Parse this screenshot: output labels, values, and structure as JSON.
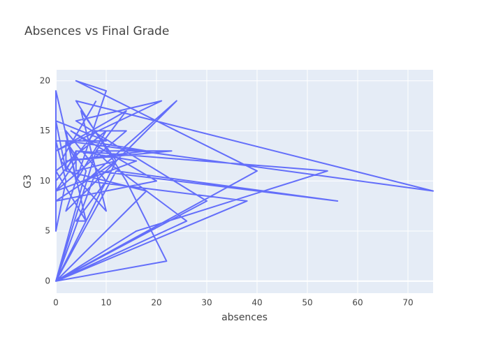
{
  "chart_data": {
    "type": "line",
    "title": "Absences vs Final Grade",
    "x_label": "absences",
    "y_label": "G3",
    "x": [
      6,
      4,
      10,
      2,
      4,
      10,
      0,
      6,
      0,
      0,
      0,
      4,
      2,
      2,
      0,
      10,
      0,
      2,
      0,
      0,
      8,
      14,
      0,
      16,
      4,
      4,
      12,
      0,
      16,
      54,
      4,
      2,
      18,
      0,
      26,
      10,
      8,
      0,
      22,
      14,
      4,
      75,
      2,
      6,
      0,
      12,
      56,
      8,
      0,
      40,
      4,
      10,
      2,
      24,
      6,
      38,
      0,
      30,
      4,
      21,
      0,
      14,
      8,
      23,
      2,
      18,
      6,
      3,
      20,
      0,
      12,
      5,
      10,
      1,
      8
    ],
    "values": [
      6,
      6,
      10,
      15,
      10,
      15,
      11,
      6,
      19,
      15,
      9,
      12,
      14,
      11,
      16,
      14,
      14,
      10,
      5,
      10,
      15,
      15,
      9,
      12,
      13,
      11,
      12,
      0,
      5,
      11,
      13,
      11,
      9,
      0,
      6,
      12,
      13,
      0,
      2,
      10,
      18,
      9,
      14,
      11,
      0,
      11,
      8,
      11,
      0,
      11,
      20,
      19,
      7,
      18,
      10,
      8,
      0,
      8,
      16,
      18,
      13,
      17,
      13,
      13,
      12,
      13,
      14,
      15,
      10,
      8,
      12,
      17,
      7,
      12,
      18
    ],
    "color": "#636efa",
    "xlim": [
      0,
      75
    ],
    "xticks": [
      0,
      10,
      20,
      30,
      40,
      50,
      60,
      70
    ],
    "ylim": [
      -1.2,
      21.1
    ],
    "yticks": [
      0,
      5,
      10,
      15,
      20
    ],
    "grid": true
  }
}
